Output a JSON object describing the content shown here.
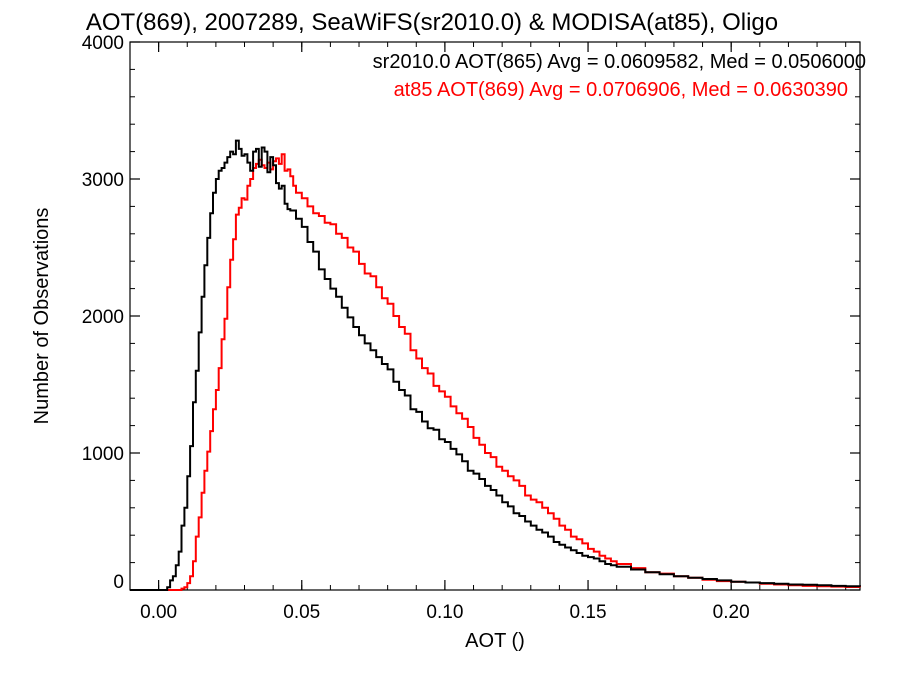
{
  "chart_data": {
    "type": "line",
    "title": "AOT(869), 2007289, SeaWiFS(sr2010.0) & MODISA(at85), Oligo",
    "xlabel": "AOT ()",
    "ylabel": "Number of Observations",
    "xlim": [
      -0.01,
      0.245
    ],
    "ylim": [
      0,
      4000
    ],
    "x_ticks": [
      0.0,
      0.05,
      0.1,
      0.15,
      0.2
    ],
    "x_tick_labels": [
      "0.00",
      "0.05",
      "0.10",
      "0.15",
      "0.20"
    ],
    "y_ticks": [
      0,
      1000,
      2000,
      3000,
      4000
    ],
    "y_tick_labels": [
      "0",
      "1000",
      "2000",
      "3000",
      "4000"
    ],
    "grid": false,
    "legend_position": "top-right",
    "series": [
      {
        "name": "sr2010.0 AOT(865)",
        "legend_text": "sr2010.0 AOT(865) Avg = 0.0609582, Med = 0.0506000",
        "color": "#000000",
        "step": true,
        "x": [
          -0.01,
          0.0,
          0.003,
          0.004,
          0.005,
          0.006,
          0.007,
          0.008,
          0.009,
          0.01,
          0.011,
          0.012,
          0.013,
          0.014,
          0.015,
          0.016,
          0.017,
          0.018,
          0.019,
          0.02,
          0.021,
          0.022,
          0.023,
          0.024,
          0.025,
          0.026,
          0.027,
          0.028,
          0.029,
          0.03,
          0.031,
          0.032,
          0.033,
          0.034,
          0.035,
          0.036,
          0.037,
          0.038,
          0.039,
          0.04,
          0.041,
          0.042,
          0.043,
          0.044,
          0.045,
          0.046,
          0.048,
          0.05,
          0.052,
          0.054,
          0.056,
          0.058,
          0.06,
          0.062,
          0.064,
          0.066,
          0.068,
          0.07,
          0.072,
          0.074,
          0.076,
          0.078,
          0.08,
          0.082,
          0.084,
          0.086,
          0.088,
          0.09,
          0.092,
          0.094,
          0.096,
          0.098,
          0.1,
          0.102,
          0.104,
          0.106,
          0.108,
          0.11,
          0.112,
          0.114,
          0.116,
          0.118,
          0.12,
          0.122,
          0.124,
          0.126,
          0.128,
          0.13,
          0.132,
          0.134,
          0.136,
          0.138,
          0.14,
          0.142,
          0.144,
          0.146,
          0.148,
          0.15,
          0.152,
          0.154,
          0.156,
          0.158,
          0.16,
          0.165,
          0.17,
          0.175,
          0.18,
          0.185,
          0.19,
          0.195,
          0.2,
          0.205,
          0.21,
          0.215,
          0.22,
          0.225,
          0.23,
          0.235,
          0.24,
          0.245
        ],
        "values": [
          0,
          0,
          20,
          70,
          100,
          180,
          280,
          470,
          600,
          830,
          1050,
          1370,
          1600,
          1880,
          2140,
          2370,
          2570,
          2750,
          2900,
          3000,
          3060,
          3080,
          3120,
          3160,
          3200,
          3180,
          3280,
          3220,
          3170,
          3180,
          3120,
          3060,
          3200,
          3220,
          3090,
          3230,
          3200,
          3050,
          3160,
          3100,
          2970,
          2930,
          2950,
          2820,
          2780,
          2770,
          2710,
          2650,
          2540,
          2470,
          2340,
          2270,
          2200,
          2140,
          2060,
          1990,
          1920,
          1860,
          1800,
          1750,
          1700,
          1650,
          1610,
          1520,
          1460,
          1420,
          1320,
          1300,
          1230,
          1180,
          1170,
          1100,
          1080,
          1030,
          990,
          940,
          870,
          850,
          810,
          760,
          730,
          690,
          640,
          610,
          560,
          540,
          500,
          470,
          440,
          420,
          390,
          350,
          330,
          310,
          290,
          270,
          250,
          240,
          230,
          210,
          190,
          180,
          170,
          150,
          130,
          115,
          100,
          90,
          80,
          70,
          60,
          55,
          50,
          45,
          40,
          38,
          35,
          30,
          28,
          25
        ]
      },
      {
        "name": "at85 AOT(869)",
        "legend_text": "at85 AOT(869) Avg = 0.0706906, Med = 0.0630390",
        "color": "#ff0000",
        "step": true,
        "x": [
          -0.01,
          0.0,
          0.006,
          0.008,
          0.009,
          0.01,
          0.011,
          0.012,
          0.013,
          0.014,
          0.015,
          0.016,
          0.017,
          0.018,
          0.019,
          0.02,
          0.021,
          0.022,
          0.023,
          0.024,
          0.025,
          0.026,
          0.027,
          0.028,
          0.029,
          0.03,
          0.031,
          0.032,
          0.033,
          0.034,
          0.035,
          0.036,
          0.037,
          0.038,
          0.039,
          0.04,
          0.041,
          0.042,
          0.043,
          0.044,
          0.045,
          0.046,
          0.047,
          0.048,
          0.05,
          0.052,
          0.054,
          0.056,
          0.058,
          0.06,
          0.062,
          0.064,
          0.066,
          0.068,
          0.07,
          0.072,
          0.074,
          0.076,
          0.078,
          0.08,
          0.082,
          0.084,
          0.086,
          0.088,
          0.09,
          0.092,
          0.094,
          0.096,
          0.098,
          0.1,
          0.102,
          0.104,
          0.106,
          0.108,
          0.11,
          0.112,
          0.114,
          0.116,
          0.118,
          0.12,
          0.122,
          0.124,
          0.126,
          0.128,
          0.13,
          0.132,
          0.134,
          0.136,
          0.138,
          0.14,
          0.142,
          0.144,
          0.146,
          0.148,
          0.15,
          0.152,
          0.154,
          0.156,
          0.158,
          0.16,
          0.165,
          0.17,
          0.175,
          0.18,
          0.185,
          0.19,
          0.195,
          0.2,
          0.205,
          0.21,
          0.215,
          0.22,
          0.225,
          0.23,
          0.235,
          0.24,
          0.245
        ],
        "values": [
          0,
          0,
          0,
          10,
          20,
          50,
          100,
          210,
          390,
          530,
          710,
          870,
          1010,
          1160,
          1320,
          1460,
          1620,
          1830,
          1980,
          2210,
          2410,
          2560,
          2740,
          2790,
          2860,
          2850,
          2950,
          3000,
          3080,
          3110,
          3140,
          3100,
          3080,
          3120,
          3070,
          3130,
          3150,
          3110,
          3180,
          3060,
          3070,
          3020,
          2950,
          2900,
          2860,
          2800,
          2750,
          2730,
          2680,
          2670,
          2600,
          2570,
          2500,
          2470,
          2380,
          2310,
          2290,
          2210,
          2130,
          2090,
          2000,
          1920,
          1870,
          1750,
          1690,
          1620,
          1580,
          1490,
          1450,
          1410,
          1340,
          1290,
          1250,
          1190,
          1110,
          1060,
          1000,
          970,
          900,
          870,
          830,
          800,
          760,
          690,
          660,
          640,
          600,
          560,
          520,
          470,
          440,
          390,
          370,
          340,
          300,
          280,
          250,
          230,
          210,
          190,
          160,
          130,
          120,
          100,
          90,
          75,
          65,
          60,
          55,
          45,
          40,
          35,
          30,
          28,
          25,
          22,
          20
        ]
      }
    ]
  }
}
